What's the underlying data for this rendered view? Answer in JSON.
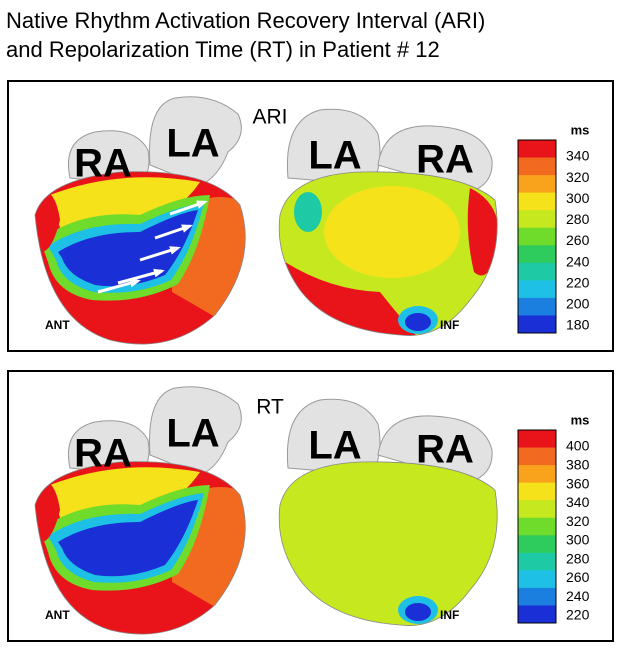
{
  "title": [
    "Native Rhythm Activation Recovery Interval (ARI)",
    "and Repolarization Time (RT) in Patient # 12"
  ],
  "panels": [
    {
      "label": "ARI",
      "views": [
        {
          "atria": [
            "RA",
            "LA"
          ],
          "view": "ANT"
        },
        {
          "atria": [
            "LA",
            "RA"
          ],
          "view": "INF"
        }
      ],
      "scale": {
        "unit": "ms",
        "ticks": [
          340,
          320,
          300,
          280,
          260,
          240,
          220,
          200,
          180
        ]
      }
    },
    {
      "label": "RT",
      "views": [
        {
          "atria": [
            "RA",
            "LA"
          ],
          "view": "ANT"
        },
        {
          "atria": [
            "LA",
            "RA"
          ],
          "view": "INF"
        }
      ],
      "scale": {
        "unit": "ms",
        "ticks": [
          400,
          380,
          360,
          340,
          320,
          300,
          280,
          260,
          240,
          220
        ]
      }
    }
  ],
  "scale_colors": [
    "#e8141a",
    "#f26a1f",
    "#f9a21c",
    "#f6e21b",
    "#c5e81e",
    "#6fdb2b",
    "#2ecc5c",
    "#1ec9a6",
    "#1ec0e6",
    "#1b7fe0",
    "#1a2fd6"
  ]
}
